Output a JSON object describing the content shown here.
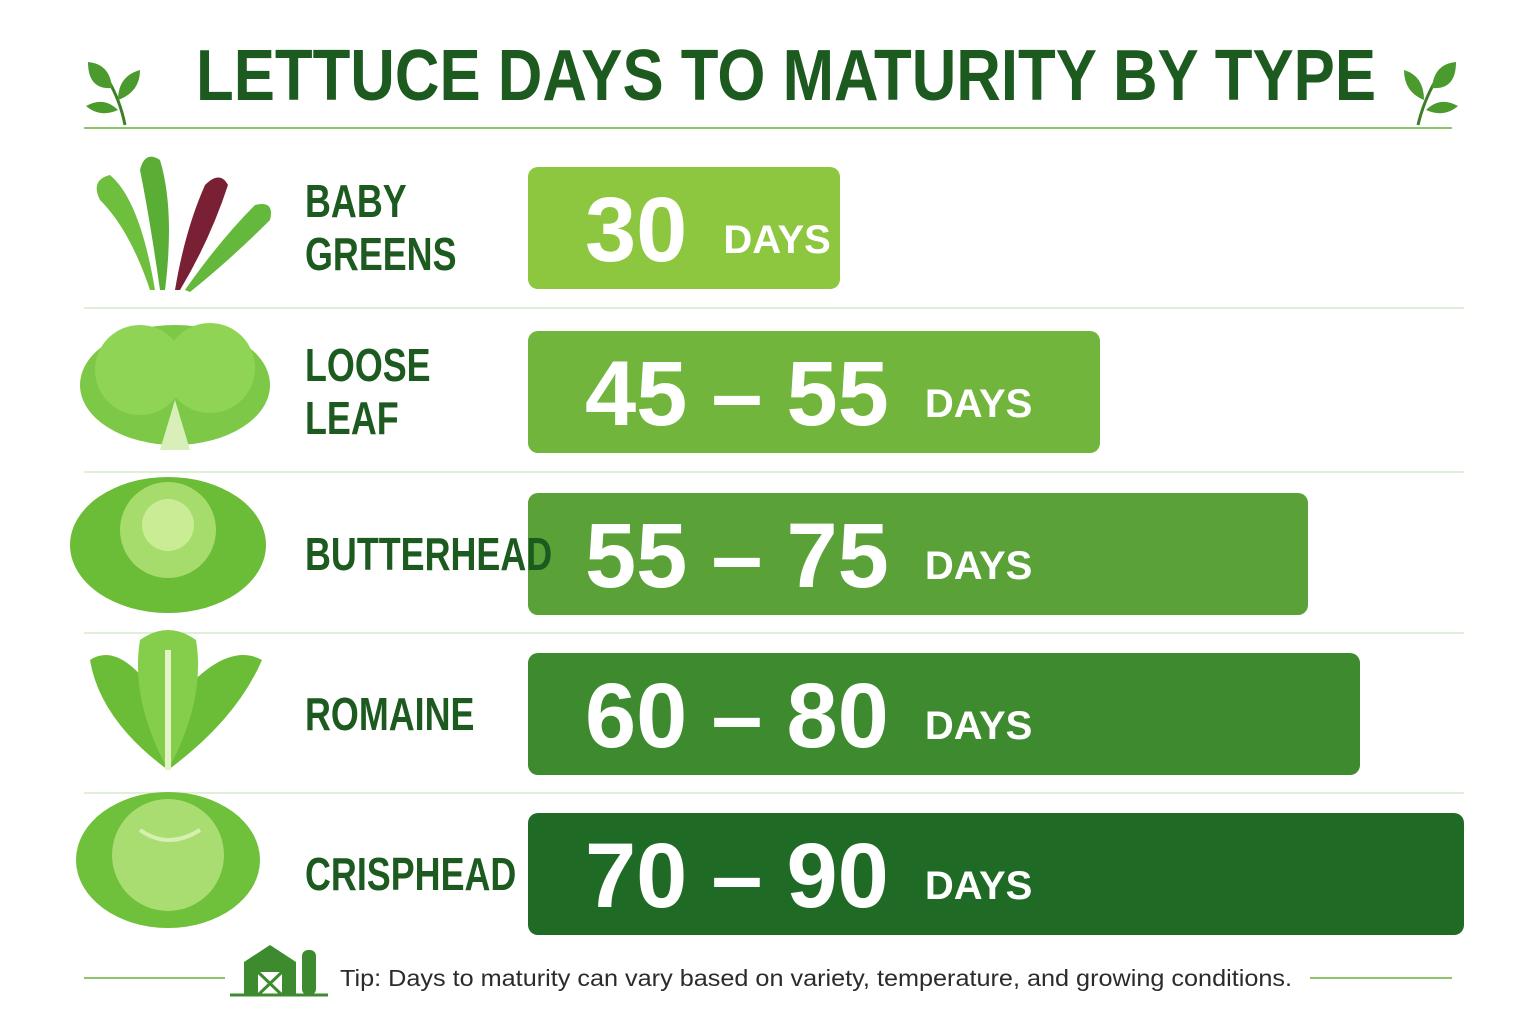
{
  "chart_data": {
    "type": "bar",
    "title": "LETTUCE DAYS TO MATURITY BY TYPE",
    "categories": [
      "BABY GREENS",
      "LOOSE LEAF",
      "BUTTERHEAD",
      "ROMAINE",
      "CRISPHEAD"
    ],
    "low": [
      null,
      45,
      55,
      60,
      70
    ],
    "values": [
      30,
      55,
      75,
      80,
      90
    ],
    "range_separator": "–",
    "unit": "DAYS",
    "colors": [
      "#8dc63f",
      "#72b53c",
      "#5aa137",
      "#3d8a2f",
      "#1f6b26"
    ],
    "xlim": [
      0,
      90
    ],
    "note": "Tip: Days to maturity can vary based on variety, temperature, and growing conditions."
  }
}
